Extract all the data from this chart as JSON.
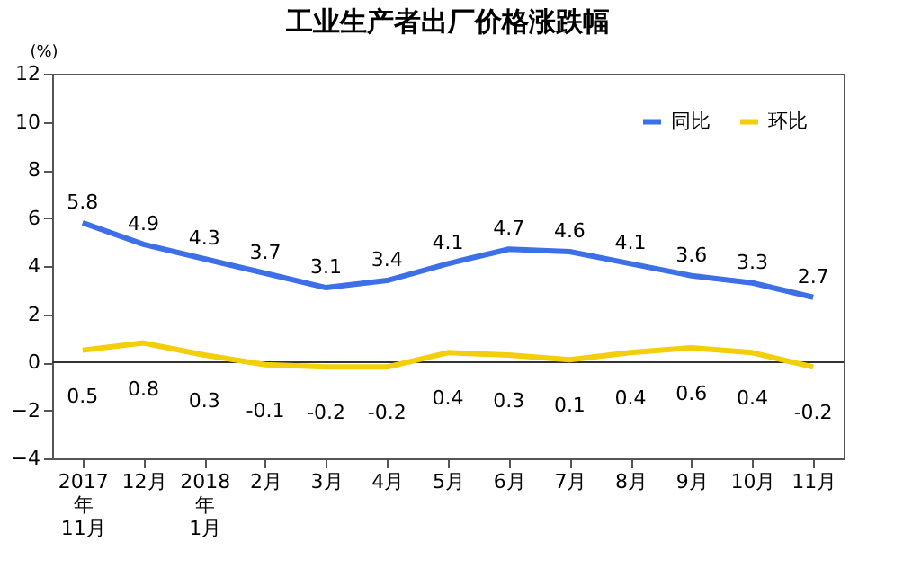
{
  "chart_data": {
    "type": "line",
    "title": "工业生产者出厂价格涨跌幅",
    "ylabel": "(%)",
    "categories": [
      "2017\n年\n11月",
      "12月",
      "2018\n年\n1月",
      "2月",
      "3月",
      "4月",
      "5月",
      "6月",
      "7月",
      "8月",
      "9月",
      "10月",
      "11月"
    ],
    "series": [
      {
        "name": "同比",
        "color": "#3d6fe6",
        "values": [
          5.8,
          4.9,
          4.3,
          3.7,
          3.1,
          3.4,
          4.1,
          4.7,
          4.6,
          4.1,
          3.6,
          3.3,
          2.7
        ]
      },
      {
        "name": "环比",
        "color": "#f2cf0a",
        "values": [
          0.5,
          0.8,
          0.3,
          -0.1,
          -0.2,
          -0.2,
          0.4,
          0.3,
          0.1,
          0.4,
          0.6,
          0.4,
          -0.2
        ]
      }
    ],
    "ylim": [
      -4,
      12
    ],
    "yticks": [
      -4,
      -2,
      0,
      2,
      4,
      6,
      8,
      10,
      12
    ],
    "ref_lines": [
      {
        "axis": "y",
        "value": 0,
        "color": "#333333"
      }
    ],
    "data_labels": true,
    "legend": "top right",
    "grid": false,
    "marker": "none",
    "line_style": "solid"
  }
}
